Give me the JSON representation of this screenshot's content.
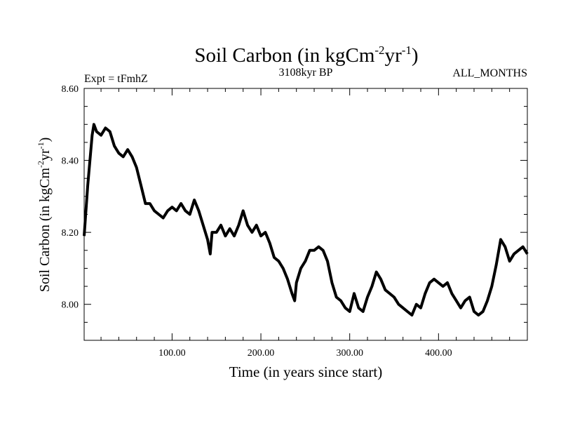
{
  "chart_data": {
    "type": "line",
    "title": "Soil Carbon (in kgCm",
    "title_exp1": "-2",
    "title_mid": "yr",
    "title_exp2": "-1",
    "title_end": ")",
    "expt_label": "Expt = tFmhZ",
    "period_label": "3108kyr BP",
    "months_label": "ALL_MONTHS",
    "xlabel": "Time (in years since start)",
    "ylabel_pre": "Soil Carbon (in kgCm",
    "ylabel_exp1": "-2",
    "ylabel_mid": "yr",
    "ylabel_exp2": "-1",
    "ylabel_end": ")",
    "xlim": [
      1,
      500
    ],
    "ylim": [
      7.9,
      8.6
    ],
    "x_ticks": [
      {
        "value": 100,
        "label": "100.00"
      },
      {
        "value": 200,
        "label": "200.00"
      },
      {
        "value": 300,
        "label": "300.00"
      },
      {
        "value": 400,
        "label": "400.00"
      }
    ],
    "y_ticks": [
      {
        "value": 8.0,
        "label": "8.00"
      },
      {
        "value": 8.2,
        "label": "8.20"
      },
      {
        "value": 8.4,
        "label": "8.40"
      },
      {
        "value": 8.6,
        "label": "8.60"
      }
    ],
    "series": [
      {
        "values_x": [
          1,
          5,
          10,
          12,
          15,
          20,
          25,
          30,
          35,
          40,
          45,
          50,
          55,
          60,
          65,
          70,
          75,
          80,
          85,
          90,
          95,
          100,
          105,
          110,
          115,
          120,
          125,
          130,
          135,
          140,
          143,
          145,
          150,
          155,
          160,
          165,
          170,
          175,
          180,
          185,
          190,
          195,
          200,
          205,
          210,
          215,
          220,
          225,
          230,
          235,
          238,
          240,
          245,
          250,
          255,
          260,
          265,
          270,
          275,
          280,
          285,
          290,
          295,
          300,
          305,
          310,
          315,
          320,
          325,
          330,
          335,
          340,
          345,
          350,
          355,
          360,
          365,
          370,
          375,
          380,
          385,
          390,
          395,
          400,
          405,
          410,
          415,
          420,
          425,
          430,
          435,
          440,
          445,
          450,
          455,
          460,
          465,
          470,
          475,
          480,
          485,
          490,
          495,
          500
        ],
        "values_y": [
          8.19,
          8.33,
          8.47,
          8.5,
          8.48,
          8.47,
          8.49,
          8.48,
          8.44,
          8.42,
          8.41,
          8.43,
          8.41,
          8.38,
          8.33,
          8.28,
          8.28,
          8.26,
          8.25,
          8.24,
          8.26,
          8.27,
          8.26,
          8.28,
          8.26,
          8.25,
          8.29,
          8.26,
          8.22,
          8.18,
          8.14,
          8.2,
          8.2,
          8.22,
          8.19,
          8.21,
          8.19,
          8.22,
          8.26,
          8.22,
          8.2,
          8.22,
          8.19,
          8.2,
          8.17,
          8.13,
          8.12,
          8.1,
          8.07,
          8.03,
          8.01,
          8.06,
          8.1,
          8.12,
          8.15,
          8.15,
          8.16,
          8.15,
          8.12,
          8.06,
          8.02,
          8.01,
          7.99,
          7.98,
          8.03,
          7.99,
          7.98,
          8.02,
          8.05,
          8.09,
          8.07,
          8.04,
          8.03,
          8.02,
          8.0,
          7.99,
          7.98,
          7.97,
          8.0,
          7.99,
          8.03,
          8.06,
          8.07,
          8.06,
          8.05,
          8.06,
          8.03,
          8.01,
          7.99,
          8.01,
          8.02,
          7.98,
          7.97,
          7.98,
          8.01,
          8.05,
          8.11,
          8.18,
          8.16,
          8.12,
          8.14,
          8.15,
          8.16,
          8.14
        ],
        "color": "#000000"
      }
    ]
  }
}
